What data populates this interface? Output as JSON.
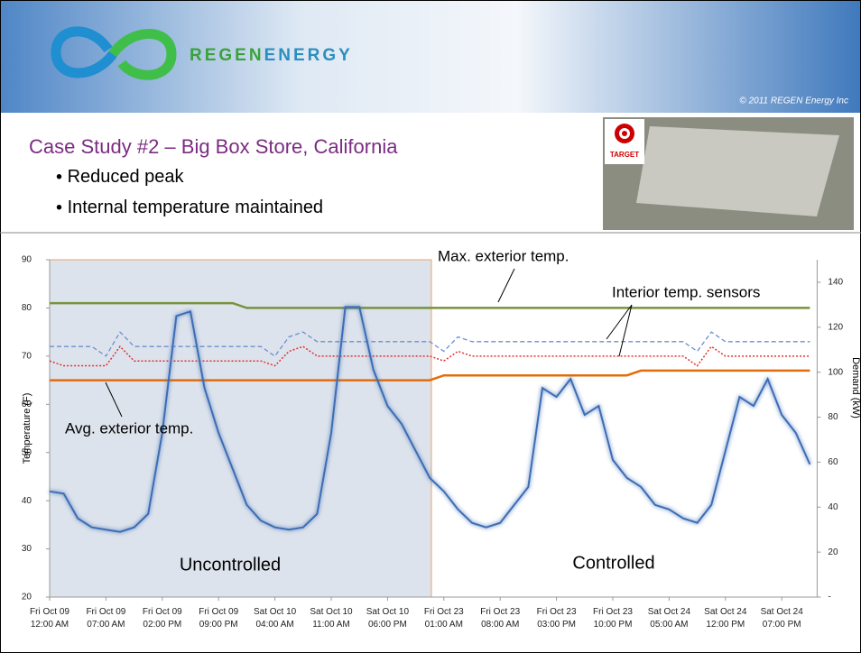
{
  "header": {
    "logo": [
      "REGEN",
      "ENERGY"
    ],
    "copyright": "© 2011 REGEN Energy Inc"
  },
  "slide": {
    "title": "Case Study #2 – Big Box Store, California",
    "bullets": [
      "Reduced peak",
      "Internal temperature maintained"
    ],
    "image_label": "TARGET"
  },
  "chart_data": {
    "type": "line",
    "y_label": "Temperature (F)",
    "y2_label": "Demand (kW)",
    "annotations": [
      "Max. exterior temp.",
      "Interior temp. sensors",
      "Avg. exterior temp.",
      "Uncontrolled",
      "Controlled"
    ],
    "categories": [
      "Fri Oct 09\n12:00 AM",
      null,
      null,
      null,
      "Fri Oct 09\n07:00 AM",
      null,
      null,
      null,
      "Fri Oct 09\n02:00 PM",
      null,
      null,
      null,
      "Fri Oct 09\n09:00 PM",
      null,
      null,
      null,
      "Sat Oct 10\n04:00 AM",
      null,
      null,
      null,
      "Sat Oct 10\n11:00 AM",
      null,
      null,
      null,
      "Sat Oct 10\n06:00 PM",
      null,
      null,
      null,
      "Fri Oct 23\n01:00 AM",
      null,
      null,
      null,
      "Fri Oct 23\n08:00 AM",
      null,
      null,
      null,
      "Fri Oct 23\n03:00 PM",
      null,
      null,
      null,
      "Fri Oct 23\n10:00 PM",
      null,
      null,
      null,
      "Sat Oct 24\n05:00 AM",
      null,
      null,
      null,
      "Sat Oct 24\n12:00 PM",
      null,
      null,
      null,
      "Sat Oct 24\n07:00 PM",
      null,
      null
    ],
    "ylim": [
      20,
      90
    ],
    "yticks": [
      20,
      30,
      40,
      50,
      60,
      70,
      80,
      90
    ],
    "y2lim": [
      0,
      150
    ],
    "y2ticks": [
      {
        "value": 0,
        "label": "-"
      },
      20,
      40,
      60,
      80,
      100,
      120,
      140
    ],
    "series": [
      {
        "color": "#77933c",
        "dash": "solid",
        "width": 2.5,
        "values": [
          81,
          81,
          81,
          81,
          81,
          81,
          81,
          81,
          81,
          81,
          81,
          81,
          81,
          81,
          80,
          80,
          80,
          80,
          80,
          80,
          80,
          80,
          80,
          80,
          80,
          80,
          80,
          80,
          80,
          80,
          80,
          80,
          80,
          80,
          80,
          80,
          80,
          80,
          80,
          80,
          80,
          80,
          80,
          80,
          80,
          80,
          80,
          80,
          80,
          80,
          80,
          80,
          80,
          80,
          80
        ]
      },
      {
        "color": "#e46c0a",
        "dash": "solid",
        "width": 2.5,
        "values": [
          65,
          65,
          65,
          65,
          65,
          65,
          65,
          65,
          65,
          65,
          65,
          65,
          65,
          65,
          65,
          65,
          65,
          65,
          65,
          65,
          65,
          65,
          65,
          65,
          65,
          65,
          65,
          65,
          66,
          66,
          66,
          66,
          66,
          66,
          66,
          66,
          66,
          66,
          66,
          66,
          66,
          66,
          67,
          67,
          67,
          67,
          67,
          67,
          67,
          67,
          67,
          67,
          67,
          67,
          67
        ]
      },
      {
        "color": "#6f8fcf",
        "dash": "dashed",
        "width": 1.3,
        "values": [
          72,
          72,
          72,
          72,
          70,
          75,
          72,
          72,
          72,
          72,
          72,
          72,
          72,
          72,
          72,
          72,
          70,
          74,
          75,
          73,
          73,
          73,
          73,
          73,
          73,
          73,
          73,
          73,
          71,
          74,
          73,
          73,
          73,
          73,
          73,
          73,
          73,
          73,
          73,
          73,
          73,
          73,
          73,
          73,
          73,
          73,
          71,
          75,
          73,
          73,
          73,
          73,
          73,
          73,
          73
        ]
      },
      {
        "color": "#e03030",
        "dash": "dotted",
        "width": 1.5,
        "values": [
          69,
          68,
          68,
          68,
          68,
          72,
          69,
          69,
          69,
          69,
          69,
          69,
          69,
          69,
          69,
          69,
          68,
          71,
          72,
          70,
          70,
          70,
          70,
          70,
          70,
          70,
          70,
          70,
          69,
          71,
          70,
          70,
          70,
          70,
          70,
          70,
          70,
          70,
          70,
          70,
          70,
          70,
          70,
          70,
          70,
          70,
          68,
          72,
          70,
          70,
          70,
          70,
          70,
          70,
          70
        ]
      },
      {
        "color": "#3c6db5",
        "dash": "solid",
        "width": 2,
        "axis": "y2",
        "values": [
          47,
          46,
          35,
          31,
          30,
          29,
          31,
          37,
          73,
          125,
          127,
          93,
          73,
          57,
          41,
          34,
          31,
          30,
          31,
          37,
          73,
          129,
          129,
          101,
          85,
          77,
          65,
          53,
          47,
          39,
          33,
          31,
          33,
          41,
          49,
          93,
          89,
          97,
          81,
          85,
          61,
          53,
          49,
          41,
          39,
          35,
          33,
          41,
          65,
          89,
          85,
          97,
          81,
          73,
          59
        ]
      }
    ]
  }
}
